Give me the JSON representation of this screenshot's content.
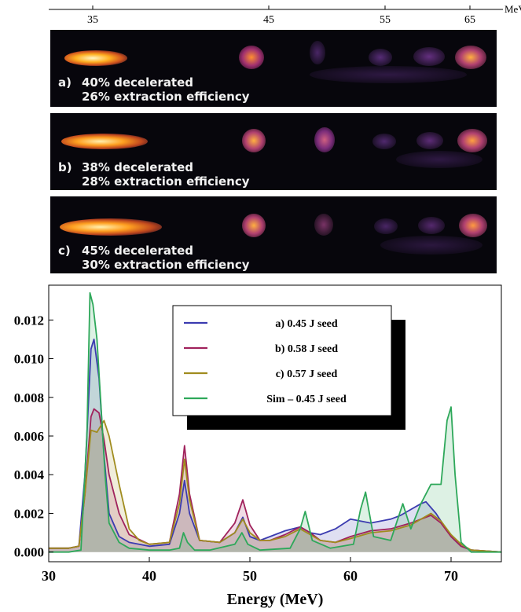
{
  "top_axis": {
    "unit": "MeV",
    "ticks": [
      {
        "value": 35,
        "label": "35"
      },
      {
        "value": 45,
        "label": "45"
      },
      {
        "value": 55,
        "label": "55"
      },
      {
        "value": 65,
        "label": "65"
      }
    ]
  },
  "panels": [
    {
      "id": "a",
      "tag": "a)",
      "line1": "40% decelerated",
      "line2": "26% extraction efficiency"
    },
    {
      "id": "b",
      "tag": "b)",
      "line1": "38% decelerated",
      "line2": "28% extraction efficiency"
    },
    {
      "id": "c",
      "tag": "c)",
      "line1": "45% decelerated",
      "line2": "30% extraction efficiency"
    }
  ],
  "colors": {
    "a": "#3b3bb0",
    "b": "#a0225c",
    "c": "#a08c1e",
    "sim": "#2ea85a",
    "panel_bg": "#07060c"
  },
  "chart_data": {
    "type": "area",
    "title": "",
    "xlabel": "Energy (MeV)",
    "ylabel": "",
    "xlim": [
      30,
      75
    ],
    "ylim": [
      -0.0005,
      0.0138
    ],
    "grid": false,
    "legend_position": "top-center",
    "xticks": [
      30,
      40,
      50,
      60,
      70
    ],
    "yticks": [
      {
        "value": 0.0,
        "label": "0.000"
      },
      {
        "value": 0.002,
        "label": "0.002"
      },
      {
        "value": 0.004,
        "label": "0.004"
      },
      {
        "value": 0.006,
        "label": "0.006"
      },
      {
        "value": 0.008,
        "label": "0.008"
      },
      {
        "value": 0.01,
        "label": "0.010"
      },
      {
        "value": 0.012,
        "label": "0.012"
      }
    ],
    "series": [
      {
        "key": "a",
        "name": "a) 0.45 J seed",
        "x": [
          30,
          32,
          33,
          33.6,
          34.2,
          34.5,
          35,
          35.5,
          36,
          37,
          38,
          40,
          42,
          43,
          43.5,
          44,
          45,
          47,
          48.5,
          49.3,
          50,
          51,
          52,
          53.5,
          55,
          56,
          57,
          58.5,
          60,
          61,
          62,
          63,
          64,
          65,
          66,
          67,
          67.5,
          68.5,
          70,
          71,
          72,
          75
        ],
        "y": [
          0.0002,
          0.0002,
          0.0003,
          0.004,
          0.0105,
          0.011,
          0.009,
          0.005,
          0.002,
          0.0008,
          0.0005,
          0.0003,
          0.0004,
          0.002,
          0.0037,
          0.002,
          0.0006,
          0.0005,
          0.001,
          0.0018,
          0.0008,
          0.0006,
          0.0008,
          0.0011,
          0.0013,
          0.001,
          0.0009,
          0.0012,
          0.0017,
          0.0016,
          0.0015,
          0.0016,
          0.0017,
          0.0019,
          0.0022,
          0.0025,
          0.0026,
          0.002,
          0.0008,
          0.0003,
          0.0001,
          0.0
        ]
      },
      {
        "key": "b",
        "name": "b) 0.58 J seed",
        "x": [
          30,
          32,
          33,
          33.6,
          34.2,
          34.5,
          35,
          35.5,
          36,
          37,
          38,
          40,
          42,
          43,
          43.5,
          44,
          45,
          47,
          48.5,
          49.3,
          50,
          51,
          52,
          53.5,
          55,
          56,
          57,
          58.5,
          60,
          62,
          64,
          66,
          68,
          69,
          70,
          71,
          72,
          75
        ],
        "y": [
          0.0002,
          0.0002,
          0.0003,
          0.003,
          0.007,
          0.0074,
          0.0072,
          0.0058,
          0.004,
          0.002,
          0.0009,
          0.0004,
          0.0005,
          0.003,
          0.0055,
          0.003,
          0.0006,
          0.0005,
          0.0015,
          0.0027,
          0.0014,
          0.0006,
          0.0006,
          0.0009,
          0.0013,
          0.001,
          0.0006,
          0.0005,
          0.0008,
          0.0011,
          0.0012,
          0.0015,
          0.0019,
          0.0015,
          0.0008,
          0.0003,
          0.0001,
          0.0
        ]
      },
      {
        "key": "c",
        "name": "c) 0.57 J seed",
        "x": [
          30,
          32,
          33,
          33.6,
          34.2,
          34.8,
          35.5,
          36,
          37,
          38,
          39,
          40,
          42,
          43,
          43.5,
          44,
          45,
          47,
          48.5,
          49.3,
          50,
          51,
          52,
          53.5,
          55,
          56,
          57,
          58.5,
          60,
          62,
          64,
          66,
          68,
          69,
          70,
          71,
          72,
          75
        ],
        "y": [
          0.0002,
          0.0002,
          0.0003,
          0.003,
          0.0063,
          0.0062,
          0.0068,
          0.006,
          0.0035,
          0.0012,
          0.0006,
          0.0004,
          0.0005,
          0.0025,
          0.0048,
          0.0027,
          0.0006,
          0.0005,
          0.001,
          0.0017,
          0.001,
          0.0006,
          0.0006,
          0.0008,
          0.0012,
          0.0009,
          0.0006,
          0.0005,
          0.0007,
          0.001,
          0.0011,
          0.0014,
          0.002,
          0.0016,
          0.0009,
          0.0004,
          0.0001,
          0.0
        ]
      },
      {
        "key": "sim",
        "name": "Sim – 0.45 J seed",
        "x": [
          30,
          32,
          33.2,
          33.8,
          34.1,
          34.4,
          34.8,
          35.2,
          35.6,
          36,
          37,
          38,
          40,
          42,
          43,
          43.4,
          43.8,
          44.5,
          46,
          48.5,
          49.2,
          49.8,
          51,
          54,
          55,
          55.5,
          56.2,
          58,
          60.3,
          61,
          61.5,
          62.3,
          64,
          65.2,
          66,
          67,
          68,
          69,
          69.6,
          70,
          70.4,
          71,
          72,
          75
        ],
        "y": [
          0.0,
          0.0,
          0.0001,
          0.006,
          0.0134,
          0.0128,
          0.011,
          0.0075,
          0.004,
          0.0015,
          0.0005,
          0.0002,
          0.0001,
          0.0001,
          0.0002,
          0.001,
          0.0005,
          0.0001,
          0.0001,
          0.0004,
          0.001,
          0.0004,
          0.0001,
          0.0002,
          0.0012,
          0.0021,
          0.0006,
          0.0002,
          0.0004,
          0.0022,
          0.0031,
          0.0008,
          0.0006,
          0.0025,
          0.0012,
          0.0025,
          0.0035,
          0.0035,
          0.0068,
          0.0075,
          0.004,
          0.0005,
          0.0,
          0.0
        ]
      }
    ]
  }
}
